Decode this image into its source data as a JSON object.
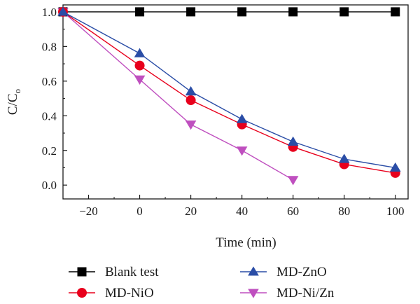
{
  "chart_data": {
    "type": "line",
    "xlabel": "Time (min)",
    "ylabel": "C/C",
    "ylabel_sub": "o",
    "xlim": [
      -30,
      105
    ],
    "ylim": [
      -0.08,
      1.04
    ],
    "x_ticks": [
      -20,
      0,
      20,
      40,
      60,
      80,
      100
    ],
    "x_tick_labels": [
      "−20",
      "0",
      "20",
      "40",
      "60",
      "80",
      "100"
    ],
    "y_ticks": [
      0.0,
      0.2,
      0.4,
      0.6,
      0.8,
      1.0
    ],
    "y_tick_labels": [
      "0.0",
      "0.2",
      "0.4",
      "0.6",
      "0.8",
      "1.0"
    ],
    "grid": false,
    "legend_position": "bottom",
    "series": [
      {
        "name": "Blank test",
        "color": "#000000",
        "marker": "square",
        "x": [
          -30,
          0,
          20,
          40,
          60,
          80,
          100
        ],
        "y": [
          1.0,
          1.0,
          1.0,
          1.0,
          1.0,
          1.0,
          1.0
        ]
      },
      {
        "name": "MD-NiO",
        "color": "#e8001c",
        "marker": "circle",
        "x": [
          -30,
          0,
          20,
          40,
          60,
          80,
          100
        ],
        "y": [
          1.0,
          0.69,
          0.49,
          0.35,
          0.22,
          0.12,
          0.07
        ]
      },
      {
        "name": "MD-ZnO",
        "color": "#2a4da6",
        "marker": "triangle-up",
        "x": [
          -30,
          0,
          20,
          40,
          60,
          80,
          100
        ],
        "y": [
          1.0,
          0.76,
          0.54,
          0.38,
          0.25,
          0.15,
          0.1
        ]
      },
      {
        "name": "MD-Ni/Zn",
        "color": "#bf4fbf",
        "marker": "triangle-down",
        "x": [
          -30,
          0,
          20,
          40,
          60
        ],
        "y": [
          1.0,
          0.61,
          0.35,
          0.2,
          0.03
        ]
      }
    ]
  }
}
